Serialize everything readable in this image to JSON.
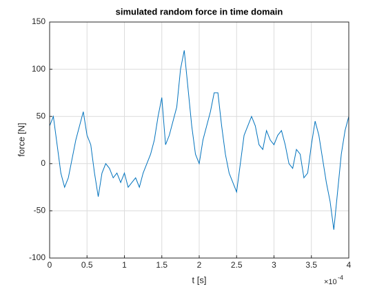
{
  "chart_data": {
    "type": "line",
    "title": "simulated random force in time domain",
    "x_label": "t [s]",
    "y_label": "force [N]",
    "x_exponent": {
      "base": "×10",
      "power": "-4"
    },
    "xlim": [
      0,
      4
    ],
    "xticks": [
      0,
      0.5,
      1,
      1.5,
      2,
      2.5,
      3,
      3.5,
      4
    ],
    "ylim": [
      -100,
      150
    ],
    "yticks": [
      -100,
      -50,
      0,
      50,
      100,
      150
    ],
    "grid": true,
    "series": [
      {
        "color": "#0072bd",
        "x": [
          0,
          0.05,
          0.1,
          0.15,
          0.2,
          0.25,
          0.3,
          0.35,
          0.4,
          0.45,
          0.5,
          0.55,
          0.6,
          0.65,
          0.7,
          0.75,
          0.8,
          0.85,
          0.9,
          0.95,
          1,
          1.05,
          1.1,
          1.15,
          1.2,
          1.25,
          1.3,
          1.35,
          1.4,
          1.45,
          1.5,
          1.55,
          1.6,
          1.65,
          1.7,
          1.75,
          1.8,
          1.85,
          1.9,
          1.95,
          2,
          2.05,
          2.1,
          2.15,
          2.2,
          2.25,
          2.3,
          2.35,
          2.4,
          2.45,
          2.5,
          2.55,
          2.6,
          2.65,
          2.7,
          2.75,
          2.8,
          2.85,
          2.9,
          2.95,
          3,
          3.05,
          3.1,
          3.15,
          3.2,
          3.25,
          3.3,
          3.35,
          3.4,
          3.45,
          3.5,
          3.55,
          3.6,
          3.65,
          3.7,
          3.75,
          3.8,
          3.85,
          3.9,
          3.95,
          4
        ],
        "values": [
          40,
          50,
          20,
          -10,
          -25,
          -15,
          5,
          25,
          40,
          55,
          30,
          20,
          -10,
          -35,
          -10,
          0,
          -5,
          -15,
          -10,
          -20,
          -10,
          -25,
          -20,
          -15,
          -25,
          -10,
          0,
          10,
          25,
          50,
          70,
          20,
          30,
          45,
          60,
          100,
          120,
          80,
          40,
          10,
          0,
          25,
          40,
          55,
          75,
          75,
          40,
          10,
          -10,
          -20,
          -30,
          0,
          30,
          40,
          50,
          40,
          20,
          15,
          35,
          25,
          20,
          30,
          35,
          20,
          0,
          -5,
          15,
          10,
          -15,
          -10,
          20,
          45,
          30,
          5,
          -20,
          -40,
          -70,
          -30,
          10,
          35,
          50
        ]
      }
    ]
  }
}
